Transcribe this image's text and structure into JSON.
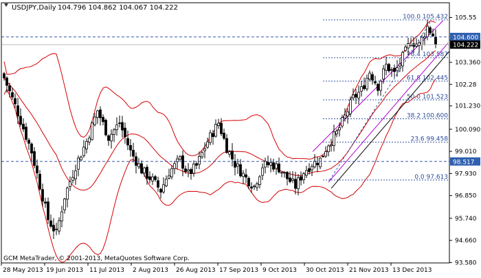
{
  "window": {
    "symbol_title": "USDJPY,Daily",
    "ohlc": "104.796 104.862 104.067 104.222",
    "watermark": "GCM MetaTrader, © 2001-2013, MetaQuotes Software Corp."
  },
  "colors": {
    "background": "#ffffff",
    "candles": "#000000",
    "bollinger": "#d40000",
    "fib_lines": "#3355aa",
    "fib_text": "#2a4a9a",
    "channel": "#b000cc",
    "badge_blue": "#3060b0",
    "badge_black": "#000000",
    "grid_text": "#000000"
  },
  "price_badges": [
    {
      "label": "104.600",
      "value": 104.6,
      "style": "blue"
    },
    {
      "label": "104.222",
      "value": 104.222,
      "style": "black"
    },
    {
      "label": "98.517",
      "value": 98.517,
      "style": "blue"
    }
  ],
  "fibonacci": {
    "levels": [
      {
        "label": "100.0 105.432",
        "value": 105.432
      },
      {
        "label": "76.4 103.587",
        "value": 103.587
      },
      {
        "label": "61.8 102.445",
        "value": 102.445
      },
      {
        "label": "50.0 101.523",
        "value": 101.523
      },
      {
        "label": "38.2 100.600",
        "value": 100.6
      },
      {
        "label": "23.6 99.458",
        "value": 99.458
      },
      {
        "label": "0.0 97.613",
        "value": 97.613
      }
    ]
  },
  "chart_data": {
    "type": "candlestick",
    "symbol": "USDJPY",
    "timeframe": "Daily",
    "ylim": [
      93.56,
      106.27
    ],
    "y_ticks": [
      "105.55",
      "104.45",
      "103.360",
      "102.28",
      "101.230",
      "100.090",
      "99.010",
      "97.930",
      "96.850",
      "95.740",
      "94.660",
      "93.580"
    ],
    "x_ticks": [
      "28 May 2013",
      "19 Jun 2013",
      "11 Jul 2013",
      "2 Aug 2013",
      "26 Aug 2013",
      "17 Sep 2013",
      "9 Oct 2013",
      "30 Oct 2013",
      "21 Nov 2013",
      "13 Dec 2013"
    ],
    "anchors": [
      {
        "i": 0,
        "c": 102.6
      },
      {
        "i": 5,
        "c": 100.9
      },
      {
        "i": 10,
        "c": 99.0
      },
      {
        "i": 16,
        "c": 95.7
      },
      {
        "i": 19,
        "c": 95.0
      },
      {
        "i": 22,
        "c": 96.8
      },
      {
        "i": 26,
        "c": 98.3
      },
      {
        "i": 30,
        "c": 99.5
      },
      {
        "i": 34,
        "c": 101.0
      },
      {
        "i": 38,
        "c": 99.7
      },
      {
        "i": 42,
        "c": 100.4
      },
      {
        "i": 46,
        "c": 99.0
      },
      {
        "i": 50,
        "c": 98.1
      },
      {
        "i": 54,
        "c": 97.6
      },
      {
        "i": 57,
        "c": 97.1
      },
      {
        "i": 60,
        "c": 98.0
      },
      {
        "i": 64,
        "c": 98.6
      },
      {
        "i": 67,
        "c": 97.9
      },
      {
        "i": 70,
        "c": 98.3
      },
      {
        "i": 74,
        "c": 99.5
      },
      {
        "i": 78,
        "c": 100.4
      },
      {
        "i": 81,
        "c": 99.2
      },
      {
        "i": 84,
        "c": 98.4
      },
      {
        "i": 88,
        "c": 97.7
      },
      {
        "i": 91,
        "c": 97.3
      },
      {
        "i": 94,
        "c": 98.3
      },
      {
        "i": 97,
        "c": 98.4
      },
      {
        "i": 100,
        "c": 98.2
      },
      {
        "i": 103,
        "c": 97.7
      },
      {
        "i": 106,
        "c": 97.3
      },
      {
        "i": 109,
        "c": 98.0
      },
      {
        "i": 112,
        "c": 98.4
      },
      {
        "i": 115,
        "c": 98.6
      },
      {
        "i": 118,
        "c": 99.4
      },
      {
        "i": 121,
        "c": 99.9
      },
      {
        "i": 124,
        "c": 100.7
      },
      {
        "i": 127,
        "c": 101.6
      },
      {
        "i": 130,
        "c": 102.0
      },
      {
        "i": 133,
        "c": 102.9
      },
      {
        "i": 136,
        "c": 102.2
      },
      {
        "i": 139,
        "c": 103.2
      },
      {
        "i": 142,
        "c": 102.8
      },
      {
        "i": 145,
        "c": 103.6
      },
      {
        "i": 148,
        "c": 104.4
      },
      {
        "i": 151,
        "c": 104.2
      },
      {
        "i": 154,
        "c": 105.1
      },
      {
        "i": 156,
        "c": 104.7
      },
      {
        "i": 157,
        "c": 104.222
      }
    ]
  }
}
